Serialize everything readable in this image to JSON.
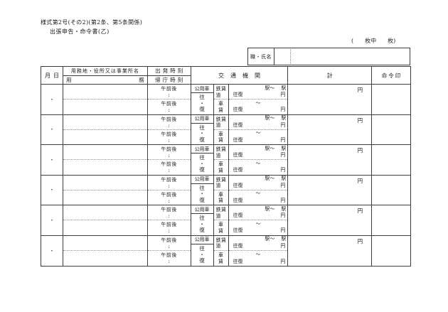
{
  "form": {
    "form_number": "様式第2号(その2)(第2条、第5条関係)",
    "title": "出張申告・命令書(乙)",
    "sheet_count": "(　　枚中　　枚)",
    "name_label": "職・氏名"
  },
  "table": {
    "header": {
      "month": "月",
      "day": "日",
      "place_line1": "用務地・役所又は事業所名",
      "place_line2_left": "用",
      "place_line2_right": "務",
      "departure_time": "出発時刻",
      "return_time": "帰庁時刻",
      "transport": "交通機関",
      "total": "計",
      "order_seal": "命令印"
    },
    "row_labels": {
      "day_separator": "・",
      "am_pm": "午前後",
      "colon": ":",
      "official_car": "公用車",
      "outbound": "往",
      "middle_dot": "・",
      "return_trip": "復",
      "rail_fare": "鉄道",
      "fare_suffix": "賃",
      "car_fare": "車賃",
      "station_from": "駅〜",
      "station_to": "駅",
      "round_trip": "往復",
      "tilde": "〜",
      "yen": "円"
    },
    "row_count": 6
  }
}
